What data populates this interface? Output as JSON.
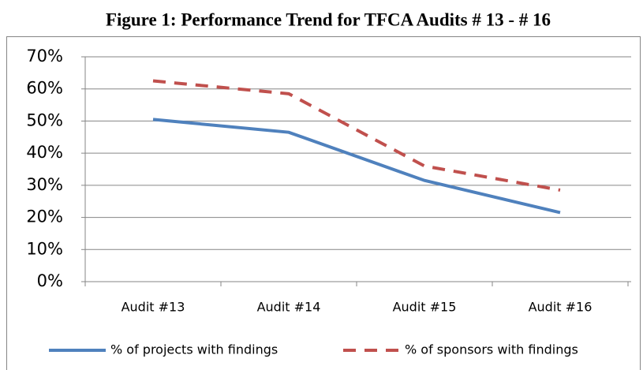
{
  "chart_data": {
    "type": "line",
    "title": "Figure 1: Performance Trend for TFCA Audits # 13 - # 16",
    "categories": [
      "Audit #13",
      "Audit #14",
      "Audit #15",
      "Audit #16"
    ],
    "series": [
      {
        "name": "% of projects with findings",
        "color": "#4f81bd",
        "dashed": false,
        "values": [
          50.5,
          46.5,
          31.5,
          21.5
        ]
      },
      {
        "name": "% of sponsors with findings",
        "color": "#c0504d",
        "dashed": true,
        "values": [
          62.5,
          58.5,
          36,
          28.5
        ]
      }
    ],
    "ylim": [
      0,
      70
    ],
    "yticks": [
      {
        "value": 0,
        "label": "0%"
      },
      {
        "value": 10,
        "label": "10%"
      },
      {
        "value": 20,
        "label": "20%"
      },
      {
        "value": 30,
        "label": "30%"
      },
      {
        "value": 40,
        "label": "40%"
      },
      {
        "value": 50,
        "label": "50%"
      },
      {
        "value": 60,
        "label": "60%"
      },
      {
        "value": 70,
        "label": "70%"
      }
    ],
    "grid": true,
    "legend": "bottom"
  }
}
